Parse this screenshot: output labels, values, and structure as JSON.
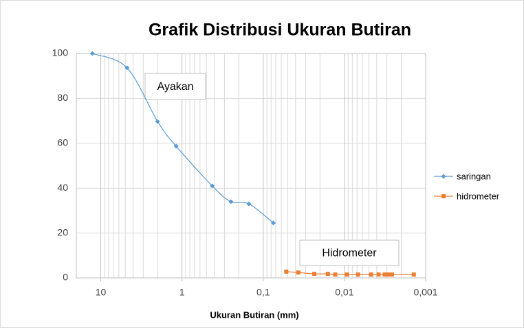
{
  "chart_data": {
    "type": "line",
    "title": "Grafik Distribusi Ukuran Butiran",
    "x_label": "Ukuran Butiran (mm)",
    "log_x": true,
    "x_reversed": true,
    "grid": true,
    "minor_grid": true,
    "legend": "right",
    "xlim": [
      20,
      0.001
    ],
    "xticks": [
      10,
      1,
      {
        "value": 0.1,
        "label": "0,1"
      },
      {
        "value": 0.01,
        "label": "0,01"
      },
      {
        "value": 0.001,
        "label": "0,001"
      }
    ],
    "ylim": [
      0,
      100
    ],
    "yticks": [
      0,
      20,
      40,
      60,
      80,
      100
    ],
    "annotations": [
      "Ayakan",
      "Hidrometer"
    ],
    "series": [
      {
        "name": "saringan",
        "color": "#5b9bd5",
        "marker": "diamond",
        "x": [
          12.7,
          4.75,
          2.0,
          1.18,
          0.425,
          0.25,
          0.15,
          0.075
        ],
        "values": [
          100,
          93.6,
          69.7,
          58.7,
          41,
          34,
          33,
          24.5
        ]
      },
      {
        "name": "hidrometer",
        "color": "#ed7d31",
        "marker": "square",
        "x": [
          0.052,
          0.037,
          0.0235,
          0.016,
          0.013,
          0.0093,
          0.0068,
          0.0047,
          0.0038,
          0.0032,
          0.0029,
          0.0026,
          0.0014
        ],
        "values": [
          2.8,
          2.4,
          1.8,
          1.8,
          1.5,
          1.5,
          1.5,
          1.5,
          1.5,
          1.5,
          1.5,
          1.5,
          1.5
        ]
      }
    ]
  }
}
